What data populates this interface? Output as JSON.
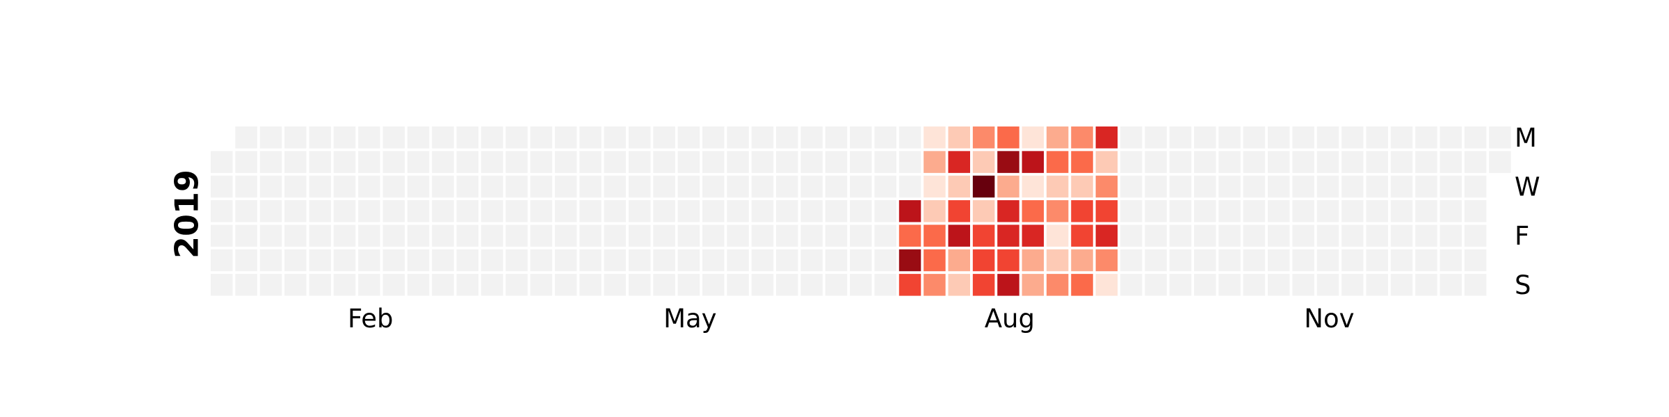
{
  "chart_data": {
    "type": "heatmap",
    "title": "",
    "year_label": "2019",
    "month_labels": [
      {
        "label": "Feb",
        "week": 6.5
      },
      {
        "label": "May",
        "week": 19.5
      },
      {
        "label": "Aug",
        "week": 32.5
      },
      {
        "label": "Nov",
        "week": 45.5
      }
    ],
    "day_labels": [
      {
        "label": "M",
        "row": 0
      },
      {
        "label": "W",
        "row": 2
      },
      {
        "label": "F",
        "row": 4
      },
      {
        "label": "S",
        "row": 6
      }
    ],
    "empty_color": "#f2f2f2",
    "colormap": "Reds",
    "value_range": [
      0,
      10
    ],
    "year_start_row": 1,
    "year_end_col": 52,
    "year_end_row": 1,
    "active_weeks": [
      {
        "week": 28,
        "values": [
          null,
          null,
          null,
          8,
          5,
          9,
          6
        ]
      },
      {
        "week": 29,
        "values": [
          1,
          3,
          1,
          2,
          5,
          5,
          4
        ]
      },
      {
        "week": 30,
        "values": [
          2,
          7,
          2,
          6,
          8,
          3,
          2
        ]
      },
      {
        "week": 31,
        "values": [
          4,
          2,
          10,
          2,
          6,
          6,
          6
        ]
      },
      {
        "week": 32,
        "values": [
          5,
          9,
          3,
          7,
          7,
          6,
          8
        ]
      },
      {
        "week": 33,
        "values": [
          1,
          8,
          1,
          5,
          7,
          3,
          3
        ]
      },
      {
        "week": 34,
        "values": [
          3,
          5,
          2,
          4,
          1,
          2,
          4
        ]
      },
      {
        "week": 35,
        "values": [
          4,
          5,
          2,
          6,
          6,
          3,
          5
        ]
      },
      {
        "week": 36,
        "values": [
          7,
          2,
          4,
          6,
          7,
          4,
          1
        ]
      }
    ]
  }
}
